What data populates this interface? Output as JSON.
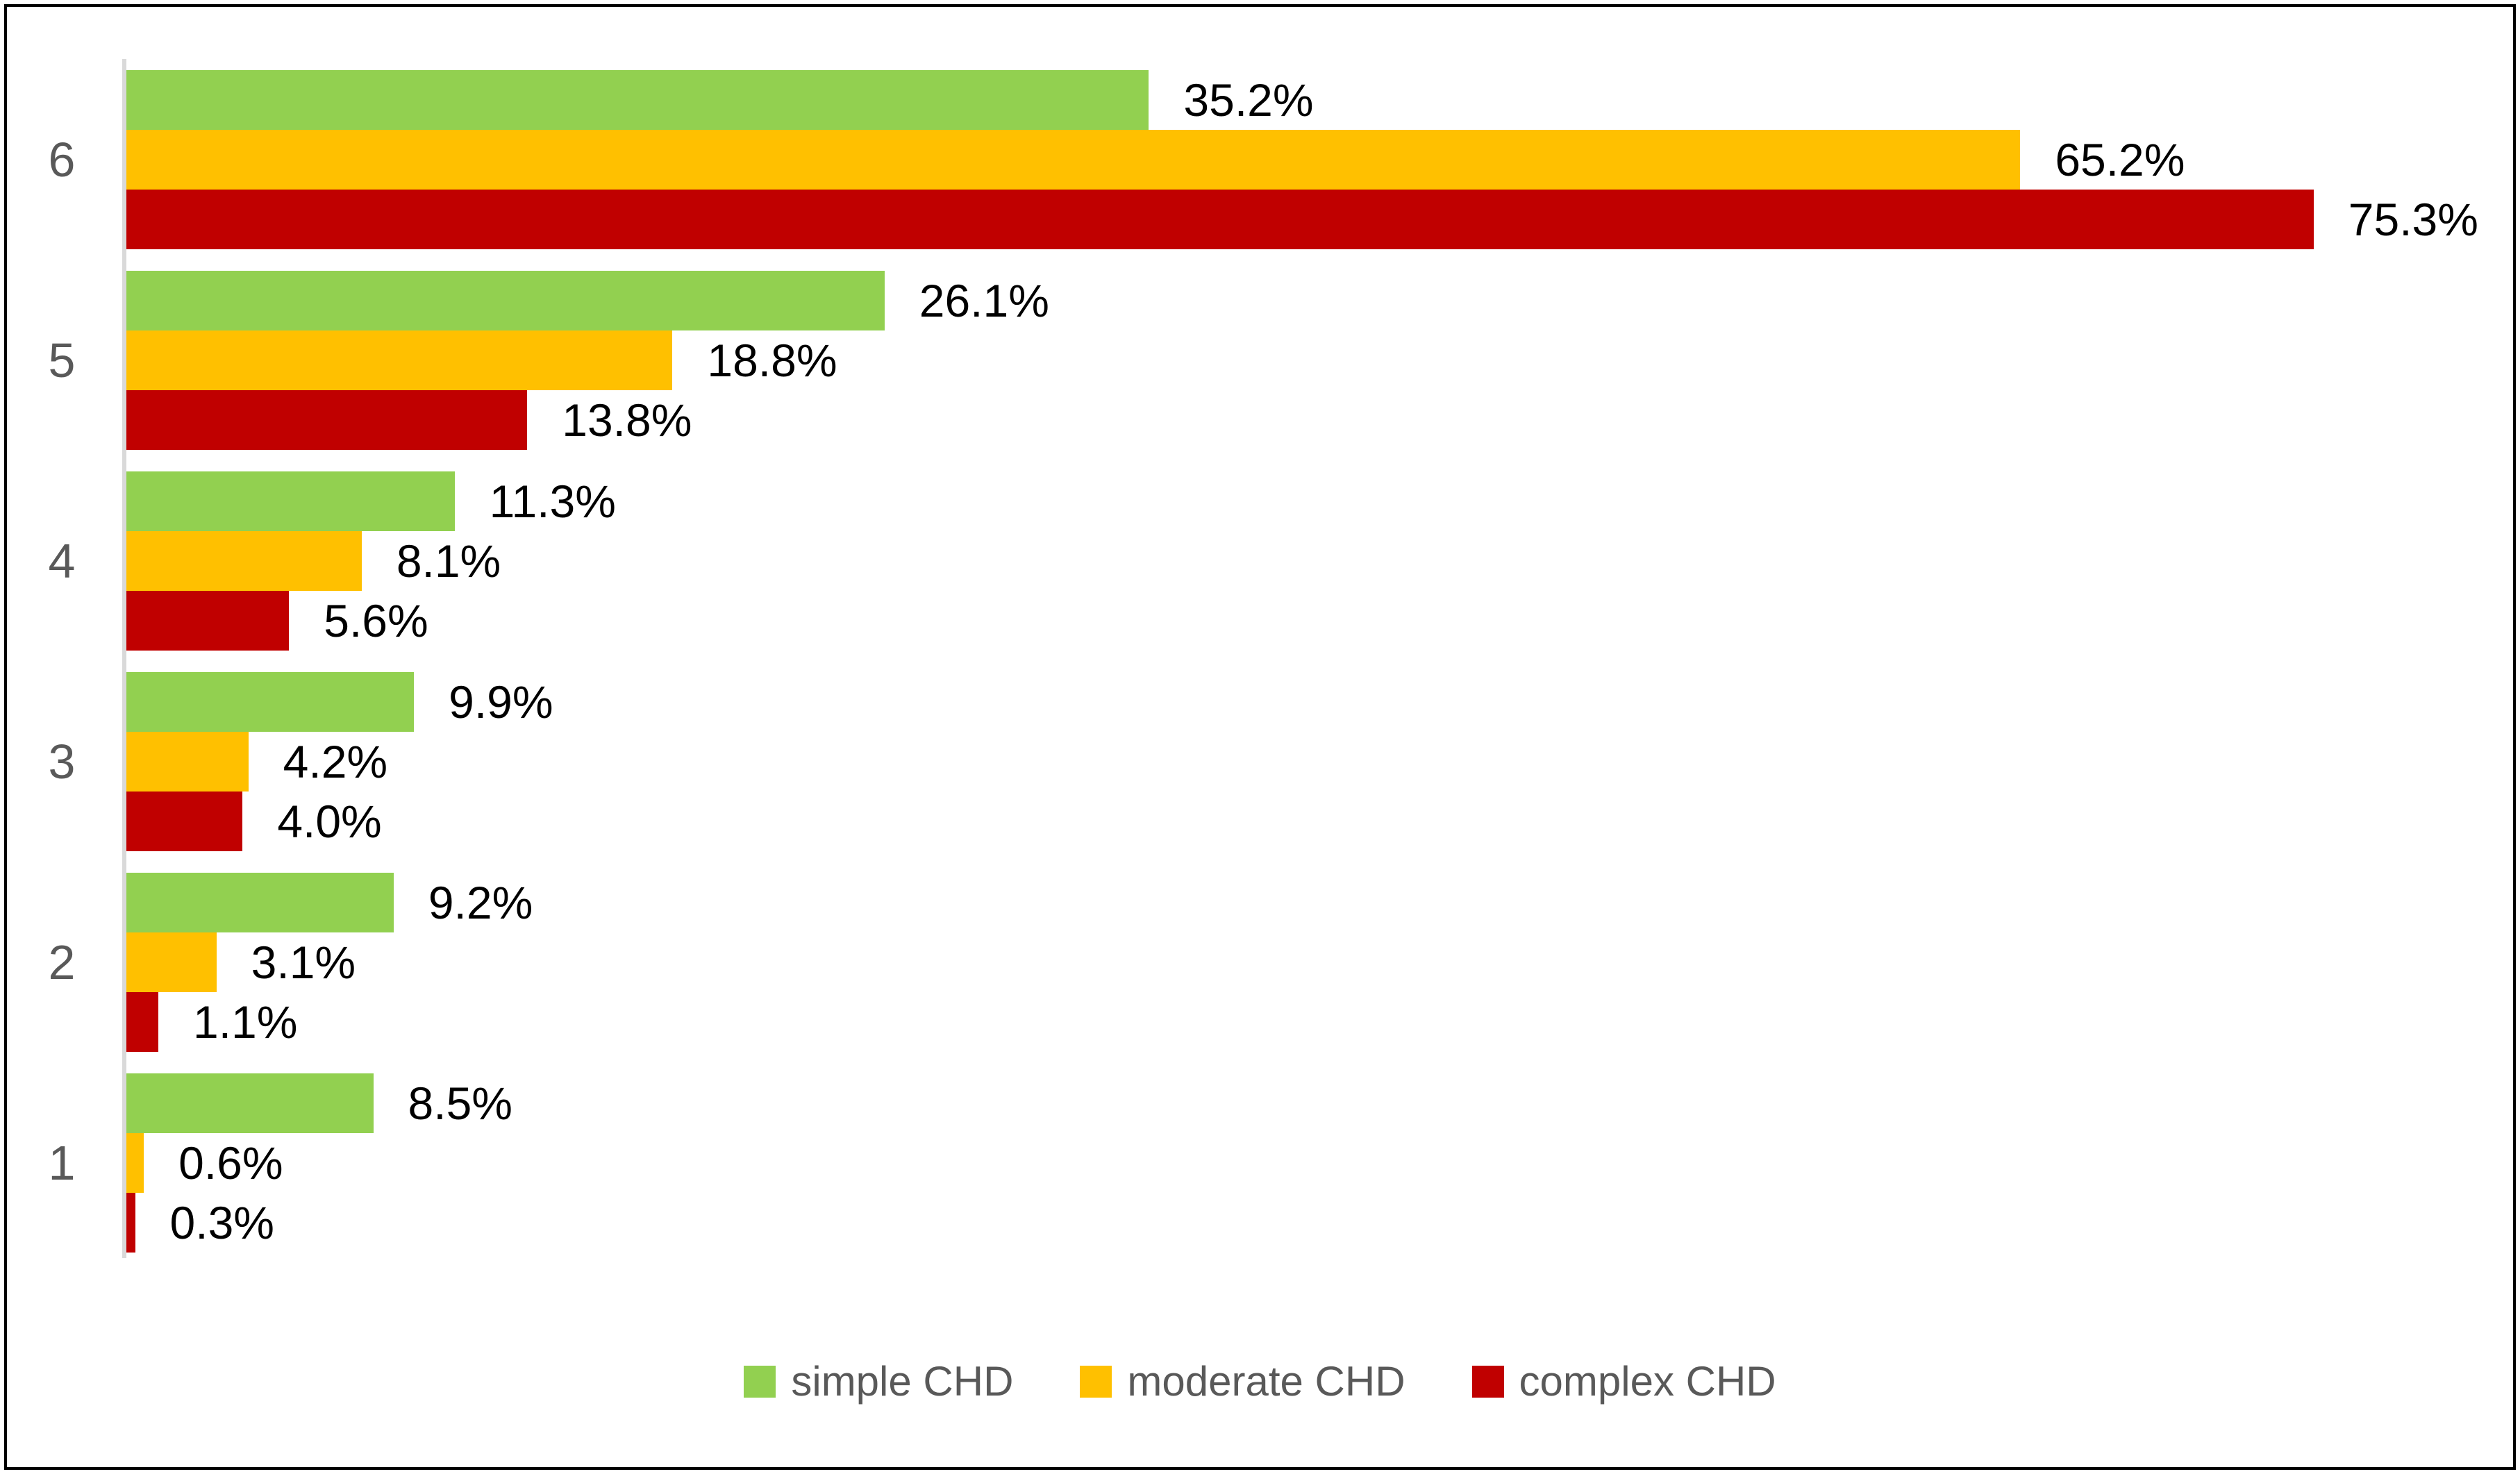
{
  "chart_data": {
    "type": "bar",
    "orientation": "horizontal",
    "title": "",
    "categories": [
      "6",
      "5",
      "4",
      "3",
      "2",
      "1"
    ],
    "series": [
      {
        "name": "simple CHD",
        "color": "#92D050",
        "values": [
          35.2,
          26.1,
          11.3,
          9.9,
          9.2,
          8.5
        ]
      },
      {
        "name": "moderate CHD",
        "color": "#FFC000",
        "values": [
          65.2,
          18.8,
          8.1,
          4.2,
          3.1,
          0.6
        ]
      },
      {
        "name": "complex CHD",
        "color": "#C00000",
        "values": [
          75.3,
          13.8,
          5.6,
          4.0,
          1.1,
          0.3
        ]
      }
    ],
    "data_label_suffix": "%",
    "data_label_decimals": 1,
    "xlim": [
      0,
      82
    ],
    "grid": false,
    "legend_position": "bottom"
  },
  "styles": {
    "background": "#FFFFFF",
    "border_color": "#000000",
    "axis_line_color": "#D9D9D9",
    "data_label_color": "#000000",
    "category_label_color": "#595959",
    "legend_text_color": "#595959"
  }
}
